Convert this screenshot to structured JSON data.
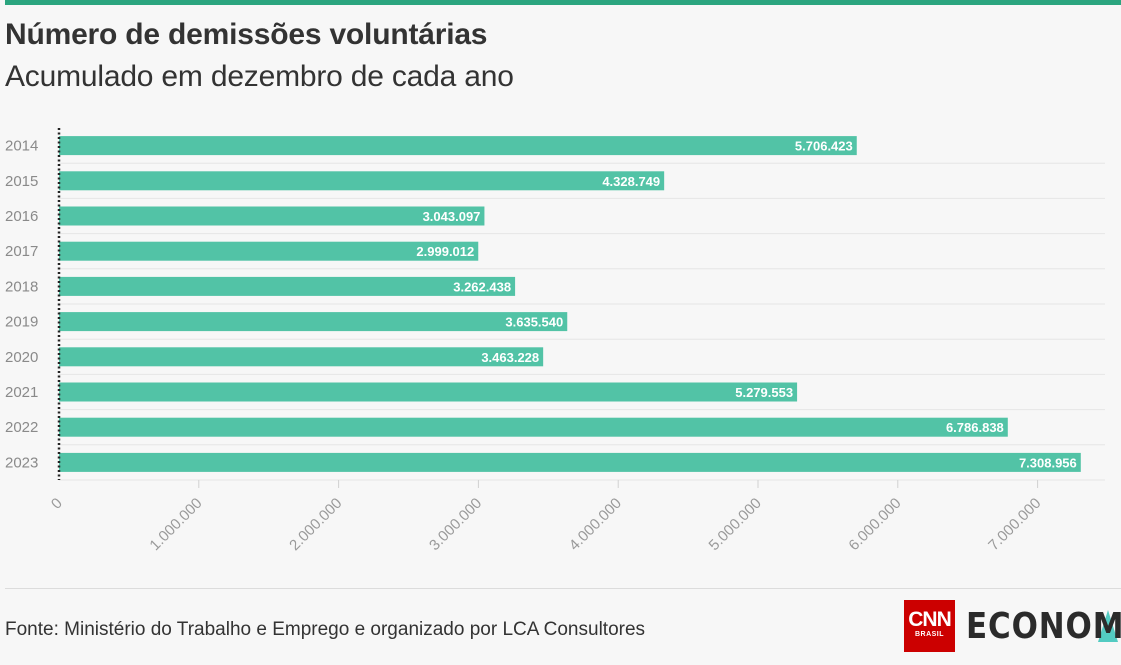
{
  "header": {
    "title": "Número de demissões voluntárias",
    "subtitle": "Acumulado em dezembro de cada ano"
  },
  "footer": {
    "source": "Fonte: Ministério do Trabalho e Emprego e organizado por LCA Consultores",
    "logo_cnn": "CNN",
    "logo_brasil": "BRASIL",
    "logo_section": "ECONOMIA"
  },
  "colors": {
    "bar": "#52c3a6",
    "accent": "#2ba57f",
    "logo_red": "#cc0000"
  },
  "chart_data": {
    "type": "bar",
    "orientation": "horizontal",
    "title": "Número de demissões voluntárias",
    "subtitle": "Acumulado em dezembro de cada ano",
    "categories": [
      "2014",
      "2015",
      "2016",
      "2017",
      "2018",
      "2019",
      "2020",
      "2021",
      "2022",
      "2023"
    ],
    "values": [
      5706423,
      4328749,
      3043097,
      2999012,
      3262438,
      3635540,
      3463228,
      5279553,
      6786838,
      7308956
    ],
    "value_labels": [
      "5.706.423",
      "4.328.749",
      "3.043.097",
      "2.999.012",
      "3.262.438",
      "3.635.540",
      "3.463.228",
      "5.279.553",
      "6.786.838",
      "7.308.956"
    ],
    "x_ticks": [
      0,
      1000000,
      2000000,
      3000000,
      4000000,
      5000000,
      6000000,
      7000000
    ],
    "x_tick_labels": [
      "0",
      "1.000.000",
      "2.000.000",
      "3.000.000",
      "4.000.000",
      "5.000.000",
      "6.000.000",
      "7.000.000"
    ],
    "xlim": [
      0,
      7500000
    ],
    "grid": true,
    "legend": "none"
  }
}
